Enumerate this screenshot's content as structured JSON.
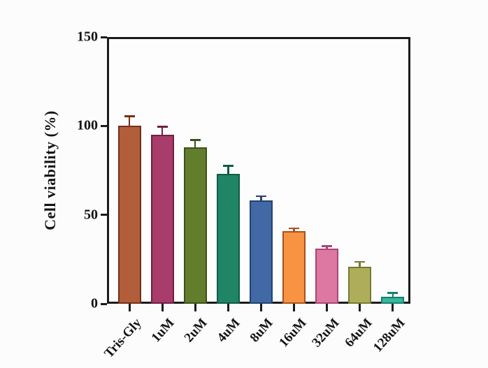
{
  "figure": {
    "background": "#fcfcfc",
    "axis_color": "#1b1b1b",
    "text_color": "#141414"
  },
  "chart_data": {
    "type": "bar",
    "title": "",
    "xlabel": "",
    "ylabel": "Cell viability (%)",
    "ylim": [
      0,
      150
    ],
    "yticks": [
      0,
      50,
      100,
      150
    ],
    "grid": false,
    "legend": null,
    "frame": "full-box",
    "categories": [
      "Tris-Gly",
      "1uM",
      "2uM",
      "4uM",
      "8uM",
      "16uM",
      "32uM",
      "64uM",
      "128uM"
    ],
    "values": [
      100,
      95,
      88,
      73,
      58,
      41,
      31,
      21,
      4
    ],
    "errors": [
      5,
      4,
      3.5,
      4,
      2,
      1,
      1,
      2,
      1.5
    ],
    "bar_colors": [
      "#b25e3a",
      "#a83c6a",
      "#627e2c",
      "#1f8565",
      "#4069a5",
      "#f89343",
      "#dc78a2",
      "#aeae5a",
      "#38b79c"
    ],
    "bar_border_colors": [
      "#73301c",
      "#701f44",
      "#3c5218",
      "#0e5c45",
      "#26426e",
      "#a8511f",
      "#a84676",
      "#767a32",
      "#177f6c"
    ]
  }
}
